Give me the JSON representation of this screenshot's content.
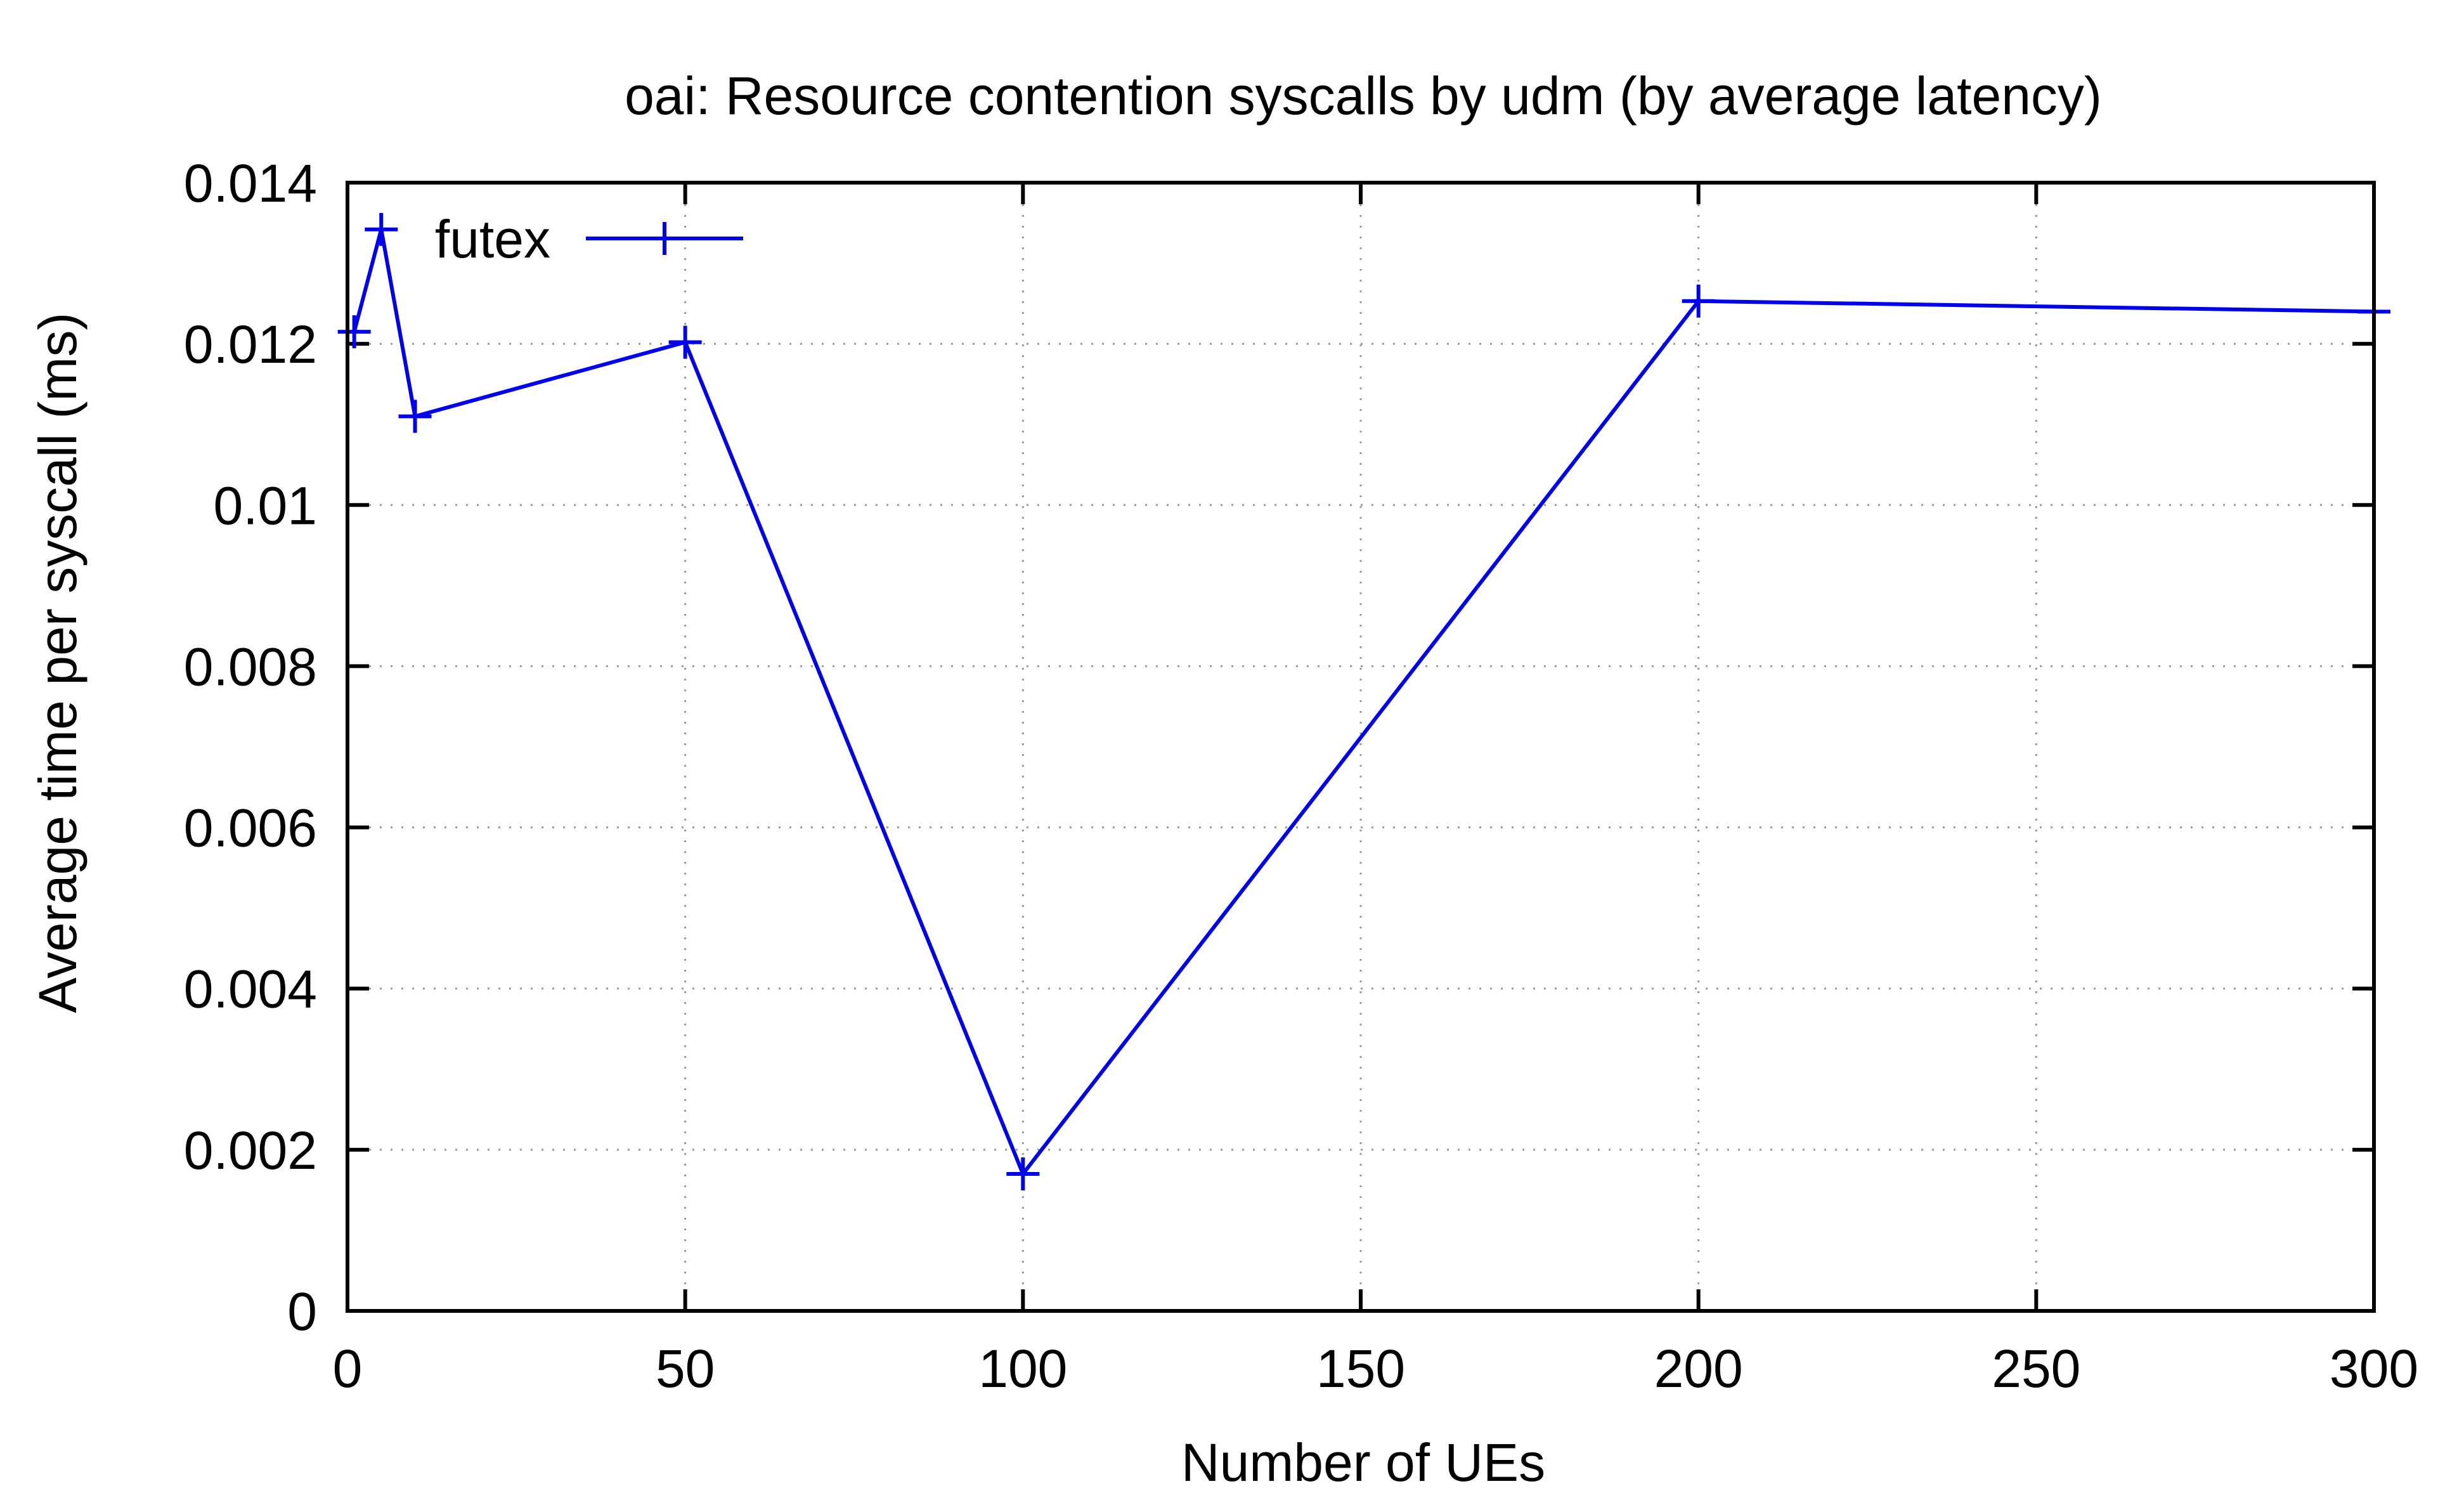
{
  "chart_data": {
    "type": "line",
    "title": "oai: Resource contention syscalls by udm (by average latency)",
    "xlabel": "Number of UEs",
    "ylabel": "Average time per syscall (ms)",
    "xlim": [
      0,
      300
    ],
    "ylim": [
      0,
      0.014
    ],
    "xticks": [
      0,
      50,
      100,
      150,
      200,
      250,
      300
    ],
    "yticks": [
      0,
      0.002,
      0.004,
      0.006,
      0.008,
      0.01,
      0.012,
      0.014
    ],
    "xtick_labels": [
      "0",
      "50",
      "100",
      "150",
      "200",
      "250",
      "300"
    ],
    "ytick_labels": [
      "0",
      "0.002",
      "0.004",
      "0.006",
      "0.008",
      "0.01",
      "0.012",
      "0.014"
    ],
    "grid": true,
    "legend_position": "top-left",
    "series": [
      {
        "name": "futex",
        "color": "#0000ee",
        "marker": "plus",
        "x": [
          1,
          5,
          10,
          50,
          100,
          200,
          300
        ],
        "y": [
          0.01215,
          0.01342,
          0.0111,
          0.01202,
          0.0017,
          0.01253,
          0.0124
        ]
      }
    ]
  }
}
